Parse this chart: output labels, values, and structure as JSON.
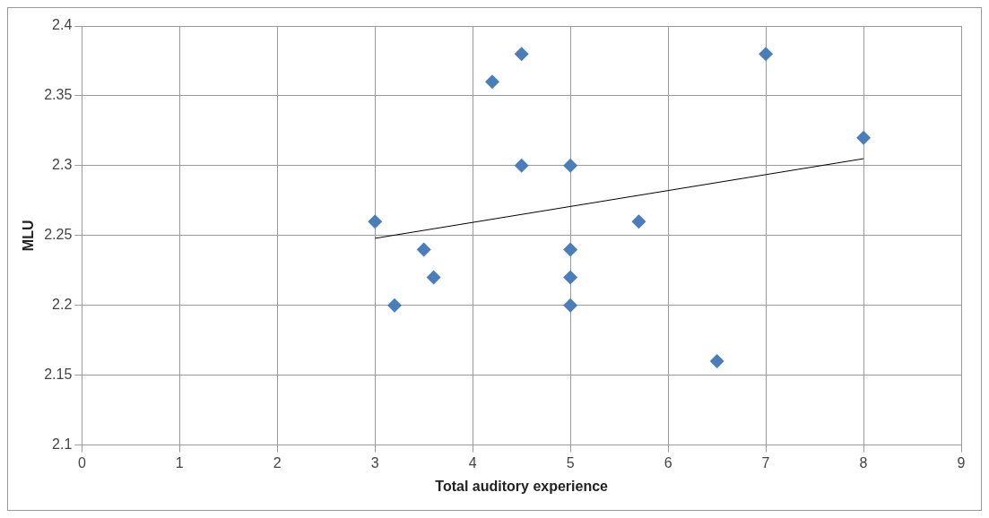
{
  "chart_data": {
    "type": "scatter",
    "xlabel": "Total auditory experience",
    "ylabel": "MLU",
    "xlim": [
      0,
      9
    ],
    "xticks": [
      0,
      1,
      2,
      3,
      4,
      5,
      6,
      7,
      8,
      9
    ],
    "ylim": [
      2.1,
      2.4
    ],
    "yticks": [
      2.1,
      2.15,
      2.2,
      2.25,
      2.3,
      2.35,
      2.4
    ],
    "grid": true,
    "legend": false,
    "series": [
      {
        "type": "scatter",
        "color": "#4a7ebb",
        "marker": "diamond",
        "x": [
          3,
          3.2,
          3.5,
          3.6,
          4.2,
          4.5,
          4.5,
          5,
          5,
          5,
          5,
          5.7,
          6.5,
          7,
          8
        ],
        "values": [
          2.26,
          2.2,
          2.24,
          2.22,
          2.36,
          2.38,
          2.3,
          2.3,
          2.24,
          2.22,
          2.2,
          2.26,
          2.16,
          2.38,
          2.32
        ]
      },
      {
        "type": "line",
        "color": "#000000",
        "marker": "none",
        "line_style": "solid",
        "x": [
          3,
          8
        ],
        "values": [
          2.248,
          2.305
        ]
      }
    ]
  }
}
